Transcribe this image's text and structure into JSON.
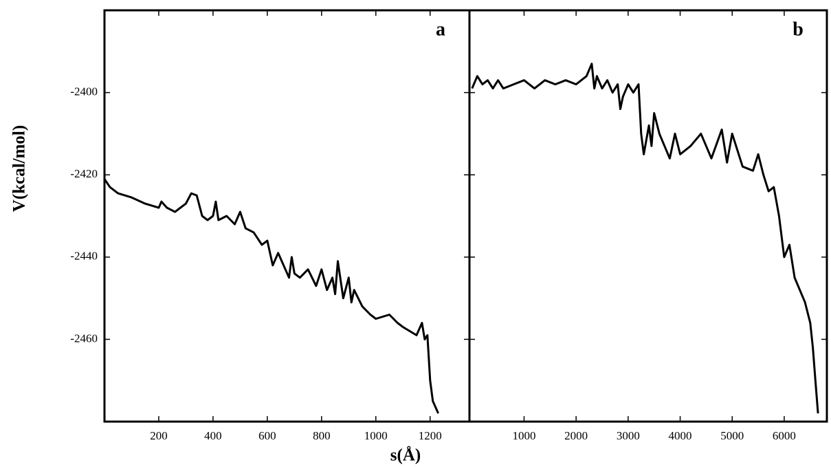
{
  "chart_data": [
    {
      "type": "line",
      "label": "a",
      "ylabel": "V(kcal/mol)",
      "xlabel": "s(Å)",
      "xlim": [
        0,
        1345
      ],
      "ylim": [
        -2480,
        -2380
      ],
      "xticks": [
        200,
        400,
        600,
        800,
        1000,
        1200
      ],
      "yticks": [
        -2400,
        -2420,
        -2440,
        -2460
      ],
      "series": [
        {
          "color": "#000000",
          "x": [
            0,
            20,
            50,
            100,
            150,
            200,
            210,
            230,
            260,
            280,
            300,
            320,
            340,
            360,
            380,
            400,
            410,
            420,
            450,
            480,
            500,
            520,
            550,
            580,
            600,
            620,
            640,
            660,
            680,
            690,
            700,
            720,
            750,
            780,
            800,
            820,
            840,
            850,
            860,
            880,
            900,
            910,
            920,
            950,
            980,
            1000,
            1050,
            1080,
            1100,
            1150,
            1170,
            1180,
            1190,
            1200,
            1210,
            1230
          ],
          "values": [
            -2421,
            -2423,
            -2424.5,
            -2425.5,
            -2427,
            -2428,
            -2426.5,
            -2428,
            -2429,
            -2428,
            -2427,
            -2424.5,
            -2425,
            -2430,
            -2431,
            -2430,
            -2426.5,
            -2431,
            -2430,
            -2432,
            -2429,
            -2433,
            -2434,
            -2437,
            -2436,
            -2442,
            -2439,
            -2442,
            -2445,
            -2440,
            -2444,
            -2445,
            -2443,
            -2447,
            -2443,
            -2448,
            -2445,
            -2449,
            -2441,
            -2450,
            -2445,
            -2451,
            -2448,
            -2452,
            -2454,
            -2455,
            -2454,
            -2456,
            -2457,
            -2459,
            -2456,
            -2460,
            -2459,
            -2470,
            -2475,
            -2478
          ]
        }
      ]
    },
    {
      "type": "line",
      "label": "b",
      "xlim": [
        -50,
        6820
      ],
      "ylim": [
        -2480,
        -2380
      ],
      "xticks": [
        1000,
        2000,
        3000,
        4000,
        5000,
        6000
      ],
      "yticks": [
        -2400,
        -2420,
        -2440,
        -2460
      ],
      "series": [
        {
          "color": "#000000",
          "x": [
            0,
            100,
            200,
            300,
            400,
            500,
            600,
            800,
            1000,
            1200,
            1400,
            1600,
            1800,
            2000,
            2200,
            2300,
            2350,
            2400,
            2500,
            2600,
            2700,
            2800,
            2850,
            2900,
            3000,
            3100,
            3200,
            3250,
            3300,
            3400,
            3450,
            3500,
            3600,
            3700,
            3800,
            3900,
            4000,
            4200,
            4400,
            4600,
            4800,
            4900,
            5000,
            5200,
            5400,
            5500,
            5600,
            5700,
            5800,
            5900,
            6000,
            6100,
            6200,
            6300,
            6400,
            6500,
            6550,
            6600,
            6650
          ],
          "values": [
            -2399,
            -2396,
            -2398,
            -2397,
            -2399,
            -2397,
            -2399,
            -2398,
            -2397,
            -2399,
            -2397,
            -2398,
            -2397,
            -2398,
            -2396,
            -2393,
            -2399,
            -2396,
            -2399,
            -2397,
            -2400,
            -2398,
            -2404,
            -2401,
            -2398,
            -2400,
            -2398,
            -2410,
            -2415,
            -2408,
            -2413,
            -2405,
            -2410,
            -2413,
            -2416,
            -2410,
            -2415,
            -2413,
            -2410,
            -2416,
            -2409,
            -2417,
            -2410,
            -2418,
            -2419,
            -2415,
            -2420,
            -2424,
            -2423,
            -2430,
            -2440,
            -2437,
            -2445,
            -2448,
            -2451,
            -2456,
            -2462,
            -2470,
            -2478
          ]
        }
      ]
    }
  ]
}
